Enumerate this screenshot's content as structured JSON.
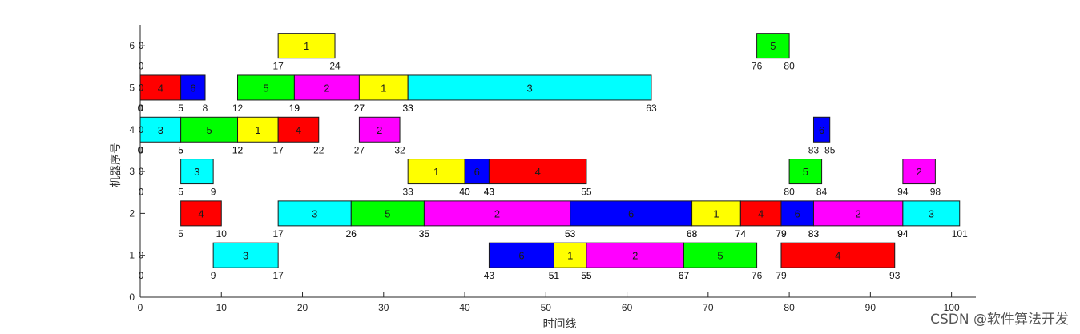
{
  "watermark": "CSDN @软件算法开发",
  "chart_data": {
    "type": "gantt",
    "xlabel": "时间线",
    "ylabel": "机器序号",
    "xlim": [
      0,
      103
    ],
    "ylim": [
      0,
      6.5
    ],
    "xticks": [
      0,
      10,
      20,
      30,
      40,
      50,
      60,
      70,
      80,
      90,
      100
    ],
    "yticks": [
      0,
      1,
      2,
      3,
      4,
      5,
      6
    ],
    "job_colors": {
      "1": "#ffff00",
      "2": "#ff00ff",
      "3": "#00ffff",
      "4": "#ff0000",
      "5": "#00ff00",
      "6": "#0000ff"
    },
    "tasks": [
      {
        "machine": 6,
        "job": 1,
        "start": 17,
        "end": 24
      },
      {
        "machine": 6,
        "job": 5,
        "start": 76,
        "end": 80
      },
      {
        "machine": 5,
        "job": 4,
        "start": 0,
        "end": 5
      },
      {
        "machine": 5,
        "job": 6,
        "start": 5,
        "end": 8
      },
      {
        "machine": 5,
        "job": 5,
        "start": 12,
        "end": 19
      },
      {
        "machine": 5,
        "job": 2,
        "start": 19,
        "end": 27
      },
      {
        "machine": 5,
        "job": 1,
        "start": 27,
        "end": 33
      },
      {
        "machine": 5,
        "job": 3,
        "start": 33,
        "end": 63
      },
      {
        "machine": 4,
        "job": 3,
        "start": 0,
        "end": 5
      },
      {
        "machine": 4,
        "job": 5,
        "start": 5,
        "end": 12
      },
      {
        "machine": 4,
        "job": 1,
        "start": 12,
        "end": 17
      },
      {
        "machine": 4,
        "job": 4,
        "start": 17,
        "end": 22
      },
      {
        "machine": 4,
        "job": 2,
        "start": 27,
        "end": 32
      },
      {
        "machine": 4,
        "job": 6,
        "start": 83,
        "end": 85
      },
      {
        "machine": 3,
        "job": 3,
        "start": 5,
        "end": 9
      },
      {
        "machine": 3,
        "job": 1,
        "start": 33,
        "end": 40
      },
      {
        "machine": 3,
        "job": 6,
        "start": 40,
        "end": 43
      },
      {
        "machine": 3,
        "job": 4,
        "start": 43,
        "end": 55
      },
      {
        "machine": 3,
        "job": 5,
        "start": 80,
        "end": 84
      },
      {
        "machine": 3,
        "job": 2,
        "start": 94,
        "end": 98
      },
      {
        "machine": 2,
        "job": 4,
        "start": 5,
        "end": 10
      },
      {
        "machine": 2,
        "job": 3,
        "start": 17,
        "end": 26
      },
      {
        "machine": 2,
        "job": 5,
        "start": 26,
        "end": 35
      },
      {
        "machine": 2,
        "job": 2,
        "start": 35,
        "end": 53
      },
      {
        "machine": 2,
        "job": 6,
        "start": 53,
        "end": 68
      },
      {
        "machine": 2,
        "job": 1,
        "start": 68,
        "end": 74
      },
      {
        "machine": 2,
        "job": 4,
        "start": 74,
        "end": 79
      },
      {
        "machine": 2,
        "job": 6,
        "start": 79,
        "end": 83
      },
      {
        "machine": 2,
        "job": 2,
        "start": 83,
        "end": 94
      },
      {
        "machine": 2,
        "job": 3,
        "start": 94,
        "end": 101
      },
      {
        "machine": 1,
        "job": 3,
        "start": 9,
        "end": 17
      },
      {
        "machine": 1,
        "job": 6,
        "start": 43,
        "end": 51
      },
      {
        "machine": 1,
        "job": 1,
        "start": 51,
        "end": 55
      },
      {
        "machine": 1,
        "job": 2,
        "start": 55,
        "end": 67
      },
      {
        "machine": 1,
        "job": 5,
        "start": 67,
        "end": 76
      },
      {
        "machine": 1,
        "job": 4,
        "start": 79,
        "end": 93
      }
    ],
    "zero_labels_machines": [
      1,
      3,
      4,
      5,
      6
    ]
  }
}
